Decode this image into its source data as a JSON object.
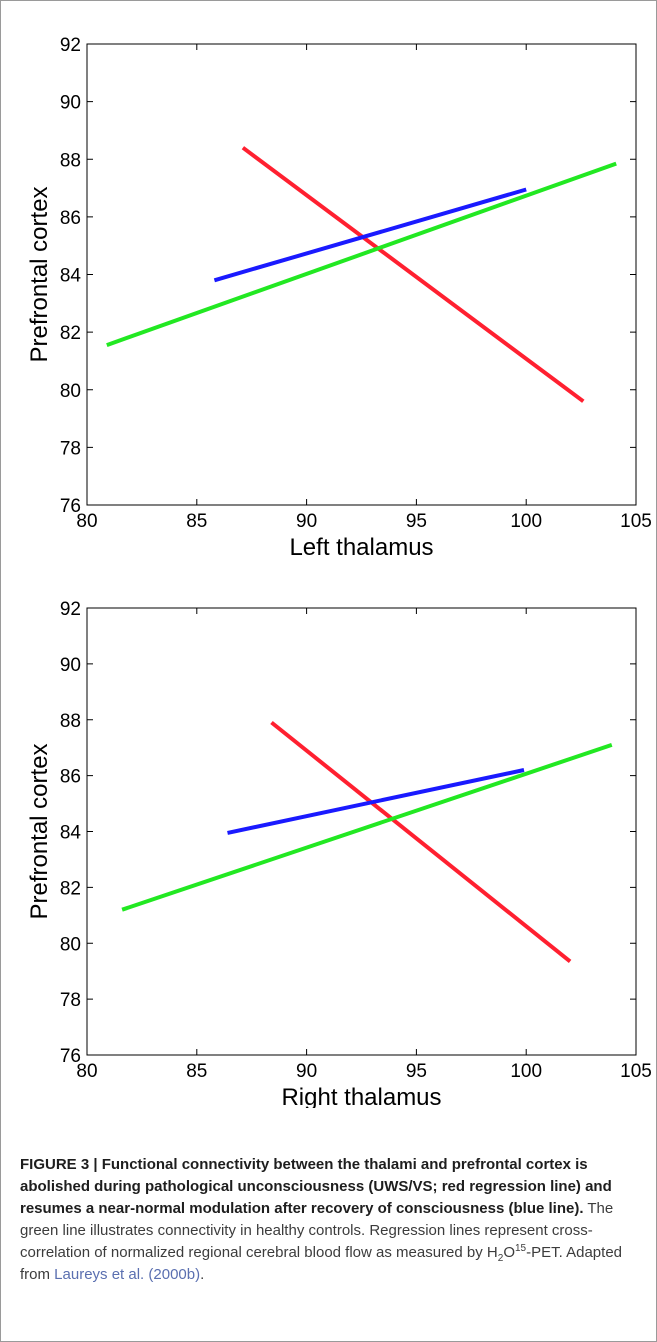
{
  "chart_data": [
    {
      "type": "line",
      "title": "",
      "xlabel": "Left thalamus",
      "ylabel": "Prefrontal cortex",
      "xlim": [
        80,
        105
      ],
      "ylim": [
        76,
        92
      ],
      "xticks": [
        80,
        85,
        90,
        95,
        100,
        105
      ],
      "yticks": [
        76,
        78,
        80,
        82,
        84,
        86,
        88,
        90,
        92
      ],
      "grid": false,
      "series": [
        {
          "color": "#ff2030",
          "x": [
            87.1,
            102.6
          ],
          "y": [
            88.4,
            79.6
          ]
        },
        {
          "color": "#1a1aff",
          "x": [
            85.8,
            100.0
          ],
          "y": [
            83.8,
            86.95
          ]
        },
        {
          "color": "#22e822",
          "x": [
            80.9,
            104.1
          ],
          "y": [
            81.55,
            87.85
          ]
        }
      ]
    },
    {
      "type": "line",
      "title": "",
      "xlabel": "Right thalamus",
      "ylabel": "Prefrontal cortex",
      "xlim": [
        80,
        105
      ],
      "ylim": [
        76,
        92
      ],
      "xticks": [
        80,
        85,
        90,
        95,
        100,
        105
      ],
      "yticks": [
        76,
        78,
        80,
        82,
        84,
        86,
        88,
        90,
        92
      ],
      "grid": false,
      "series": [
        {
          "color": "#ff2030",
          "x": [
            88.4,
            102.0
          ],
          "y": [
            87.9,
            79.35
          ]
        },
        {
          "color": "#1a1aff",
          "x": [
            86.4,
            99.9
          ],
          "y": [
            83.95,
            86.2
          ]
        },
        {
          "color": "#22e822",
          "x": [
            81.6,
            103.9
          ],
          "y": [
            81.2,
            87.1
          ]
        }
      ]
    }
  ],
  "caption": {
    "label": "FIGURE 3 | Functional connectivity between the thalami and prefrontal cortex is abolished during pathological unconsciousness (UWS/VS; red regression line) and resumes a near-normal modulation after recovery of consciousness (blue line).",
    "text_1": " The green line illustrates connectivity in healthy controls. Regression lines represent cross-correlation of normalized regional cerebral blood flow as measured by H",
    "sub": "2",
    "mid": "O",
    "sup": "15",
    "text_2": "-PET. Adapted from ",
    "reference": "Laureys et al. (2000b)",
    "end": "."
  }
}
